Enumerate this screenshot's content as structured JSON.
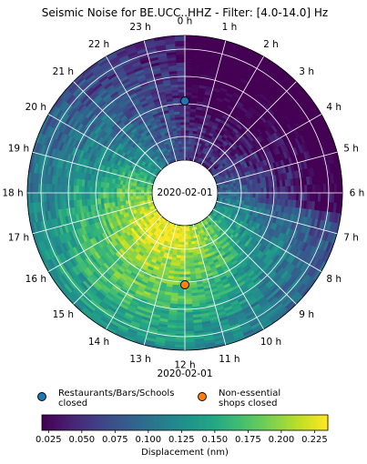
{
  "chart_data": {
    "type": "heatmap",
    "title": "Seismic Noise for BE.UCC..HHZ - Filter: [4.0-14.0] Hz",
    "center_label": "2020-02-01",
    "bottom_label": "2020-02-01",
    "hour_labels": [
      "0 h",
      "1 h",
      "2 h",
      "3 h",
      "4 h",
      "5 h",
      "6 h",
      "7 h",
      "8 h",
      "9 h",
      "10 h",
      "11 h",
      "12 h",
      "13 h",
      "14 h",
      "15 h",
      "16 h",
      "17 h",
      "18 h",
      "19 h",
      "20 h",
      "21 h",
      "22 h",
      "23 h"
    ],
    "events": [
      {
        "label": "Restaurants/Bars/Schools closed",
        "label_lines": [
          "Restaurants/Bars/Schools",
          "closed"
        ],
        "color": "#1f77b4",
        "hour": 0.0
      },
      {
        "label": "Non-essential shops closed",
        "label_lines": [
          "Non-essential",
          "shops closed"
        ],
        "color": "#ff7f0e",
        "hour": 12.0
      }
    ],
    "colorbar": {
      "label": "Displacement (nm)",
      "min": 0.02,
      "max": 0.235,
      "ticks": [
        "0.025",
        "0.050",
        "0.075",
        "0.100",
        "0.125",
        "0.150",
        "0.175",
        "0.200",
        "0.225"
      ],
      "colormap": "viridis"
    },
    "pattern": {
      "description_source": "daily displacement rings (radial = day, angle = hour of day)",
      "night_hours_low": [
        0.0,
        6.0
      ],
      "day_hours_high": [
        6.0,
        18.0
      ]
    }
  }
}
